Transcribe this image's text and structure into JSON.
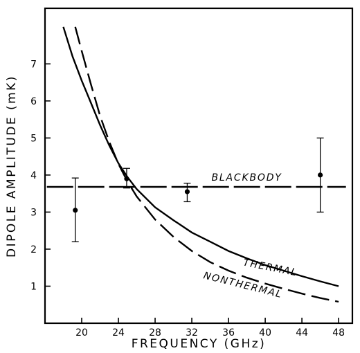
{
  "chart_data": {
    "type": "line",
    "xlabel": "FREQUENCY (GHz)",
    "ylabel": "DIPOLE AMPLITUDE (mK)",
    "xlim": [
      16,
      49.5
    ],
    "ylim": [
      0,
      8.5
    ],
    "x_ticks": [
      20,
      24,
      28,
      32,
      36,
      40,
      44,
      48
    ],
    "y_ticks": [
      1,
      2,
      3,
      4,
      5,
      6,
      7
    ],
    "grid": false,
    "series": [
      {
        "name": "BLACKBODY",
        "style": "long-dash",
        "x": [
          16.2,
          48.8
        ],
        "y": [
          3.68,
          3.68
        ]
      },
      {
        "name": "THERMAL",
        "style": "solid",
        "x": [
          18.0,
          19.0,
          20.0,
          21.0,
          22.0,
          23.0,
          24.0,
          25.0,
          26.0,
          28.0,
          30.0,
          32.0,
          34.0,
          36.0,
          38.0,
          40.0,
          42.0,
          44.0,
          46.0,
          48.0
        ],
        "y": [
          8.0,
          7.2,
          6.55,
          5.95,
          5.35,
          4.8,
          4.32,
          3.94,
          3.62,
          3.13,
          2.78,
          2.45,
          2.2,
          1.95,
          1.75,
          1.57,
          1.42,
          1.27,
          1.13,
          1.0
        ]
      },
      {
        "name": "NONTHERMAL",
        "style": "dashed",
        "x": [
          19.3,
          20.0,
          21.0,
          22.0,
          23.0,
          24.0,
          25.0,
          26.0,
          28.0,
          30.0,
          32.0,
          34.0,
          36.0,
          38.0,
          40.0,
          42.0,
          44.0,
          46.0,
          48.0
        ],
        "y": [
          8.0,
          7.35,
          6.45,
          5.6,
          4.9,
          4.3,
          3.82,
          3.42,
          2.8,
          2.33,
          1.95,
          1.65,
          1.42,
          1.23,
          1.07,
          0.93,
          0.8,
          0.68,
          0.58
        ]
      }
    ],
    "data_points": [
      {
        "x": 19.3,
        "y": 3.05,
        "y_low": 2.2,
        "y_high": 3.92
      },
      {
        "x": 24.9,
        "y": 3.9,
        "y_low": 3.65,
        "y_high": 4.18
      },
      {
        "x": 31.5,
        "y": 3.55,
        "y_low": 3.28,
        "y_high": 3.78
      },
      {
        "x": 46.0,
        "y": 4.0,
        "y_low": 3.0,
        "y_high": 5.0
      }
    ],
    "annotations": [
      {
        "text": "BLACKBODY",
        "x": 38.0,
        "y": 3.85
      },
      {
        "text": "THERMAL",
        "x": 40.5,
        "y": 1.42,
        "angle": 11
      },
      {
        "text": "NONTHERMAL",
        "x": 37.5,
        "y": 0.95,
        "angle": 14
      }
    ]
  }
}
